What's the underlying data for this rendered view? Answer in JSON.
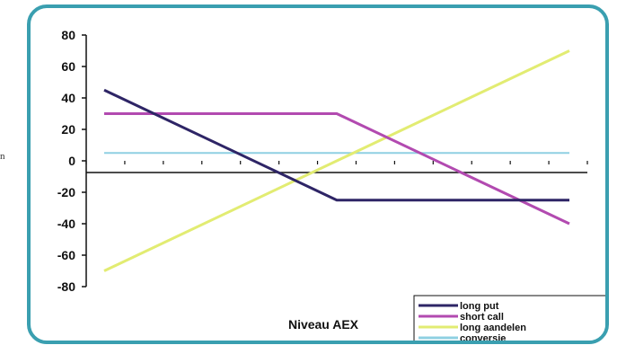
{
  "side_mark": "n",
  "chart_data": {
    "type": "line",
    "xlabel": "Niveau AEX",
    "ylabel": "",
    "ylim": [
      -80,
      80
    ],
    "yticks": [
      80,
      60,
      40,
      20,
      0,
      -20,
      -40,
      -60,
      -80
    ],
    "grid": false,
    "legend_position": "bottom-right",
    "series": [
      {
        "name": "long put",
        "color": "#2e2566",
        "points": [
          [
            0,
            45
          ],
          [
            50,
            -25
          ],
          [
            100,
            -25
          ]
        ]
      },
      {
        "name": "short call",
        "color": "#b24ab0",
        "points": [
          [
            0,
            30
          ],
          [
            50,
            30
          ],
          [
            100,
            -40
          ]
        ]
      },
      {
        "name": "long aandelen",
        "color": "#e2ec72",
        "points": [
          [
            0,
            -70
          ],
          [
            100,
            70
          ]
        ]
      },
      {
        "name": "conversie",
        "color": "#8fd0e2",
        "points": [
          [
            0,
            5
          ],
          [
            100,
            5
          ]
        ]
      }
    ]
  }
}
